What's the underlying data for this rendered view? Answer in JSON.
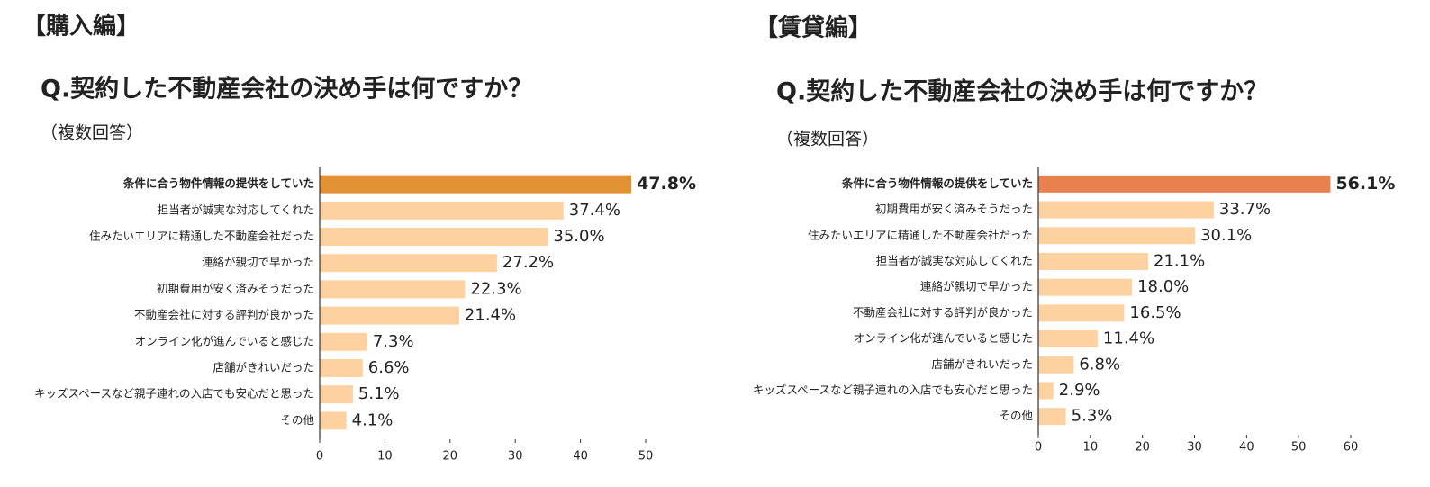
{
  "chart_data": [
    {
      "type": "barh",
      "section": "【購入編】",
      "title": "Q.契約した不動産会社の決め手は何ですか？",
      "subtitle": "（複数回答）",
      "categories": [
        "条件に合う物件情報の提供をしていた",
        "担当者が誠実な対応してくれた",
        "住みたいエリアに精通した不動産会社だった",
        "連絡が親切で早かった",
        "初期費用が安く済みそうだった",
        "不動産会社に対する評判が良かった",
        "オンライン化が進んでいると感じた",
        "店舗がきれいだった",
        "キッズスペースなど親子連れの入店でも安心だと思った",
        "その他"
      ],
      "values": [
        47.8,
        37.4,
        35.0,
        27.2,
        22.3,
        21.4,
        7.3,
        6.6,
        5.1,
        4.1
      ],
      "value_labels": [
        "47.8%",
        "37.4%",
        "35.0%",
        "27.2%",
        "22.3%",
        "21.4%",
        "7.3%",
        "6.6%",
        "5.1%",
        "4.1%"
      ],
      "colors": [
        "#e39135",
        "#fdd1a0",
        "#fdd1a0",
        "#fdd1a0",
        "#fdd1a0",
        "#fdd1a0",
        "#fdd1a0",
        "#fdd1a0",
        "#fdd1a0",
        "#fdd1a0"
      ],
      "xlim": [
        0,
        50
      ],
      "xticks": [
        0,
        10,
        20,
        30,
        40,
        50
      ]
    },
    {
      "type": "barh",
      "section": "【賃貸編】",
      "title": "Q.契約した不動産会社の決め手は何ですか？",
      "subtitle": "（複数回答）",
      "categories": [
        "条件に合う物件情報の提供をしていた",
        "初期費用が安く済みそうだった",
        "住みたいエリアに精通した不動産会社だった",
        "担当者が誠実な対応してくれた",
        "連絡が親切で早かった",
        "不動産会社に対する評判が良かった",
        "オンライン化が進んでいると感じた",
        "店舗がきれいだった",
        "キッズスペースなど親子連れの入店でも安心だと思った",
        "その他"
      ],
      "values": [
        56.1,
        33.7,
        30.1,
        21.1,
        18.0,
        16.5,
        11.4,
        6.8,
        2.9,
        5.3
      ],
      "value_labels": [
        "56.1%",
        "33.7%",
        "30.1%",
        "21.1%",
        "18.0%",
        "16.5%",
        "11.4%",
        "6.8%",
        "2.9%",
        "5.3%"
      ],
      "colors": [
        "#e8804f",
        "#fdd1a0",
        "#fdd1a0",
        "#fdd1a0",
        "#fdd1a0",
        "#fdd1a0",
        "#fdd1a0",
        "#fdd1a0",
        "#fdd1a0",
        "#fdd1a0"
      ],
      "xlim": [
        0,
        60
      ],
      "xticks": [
        0,
        10,
        20,
        30,
        40,
        50,
        60
      ]
    }
  ]
}
